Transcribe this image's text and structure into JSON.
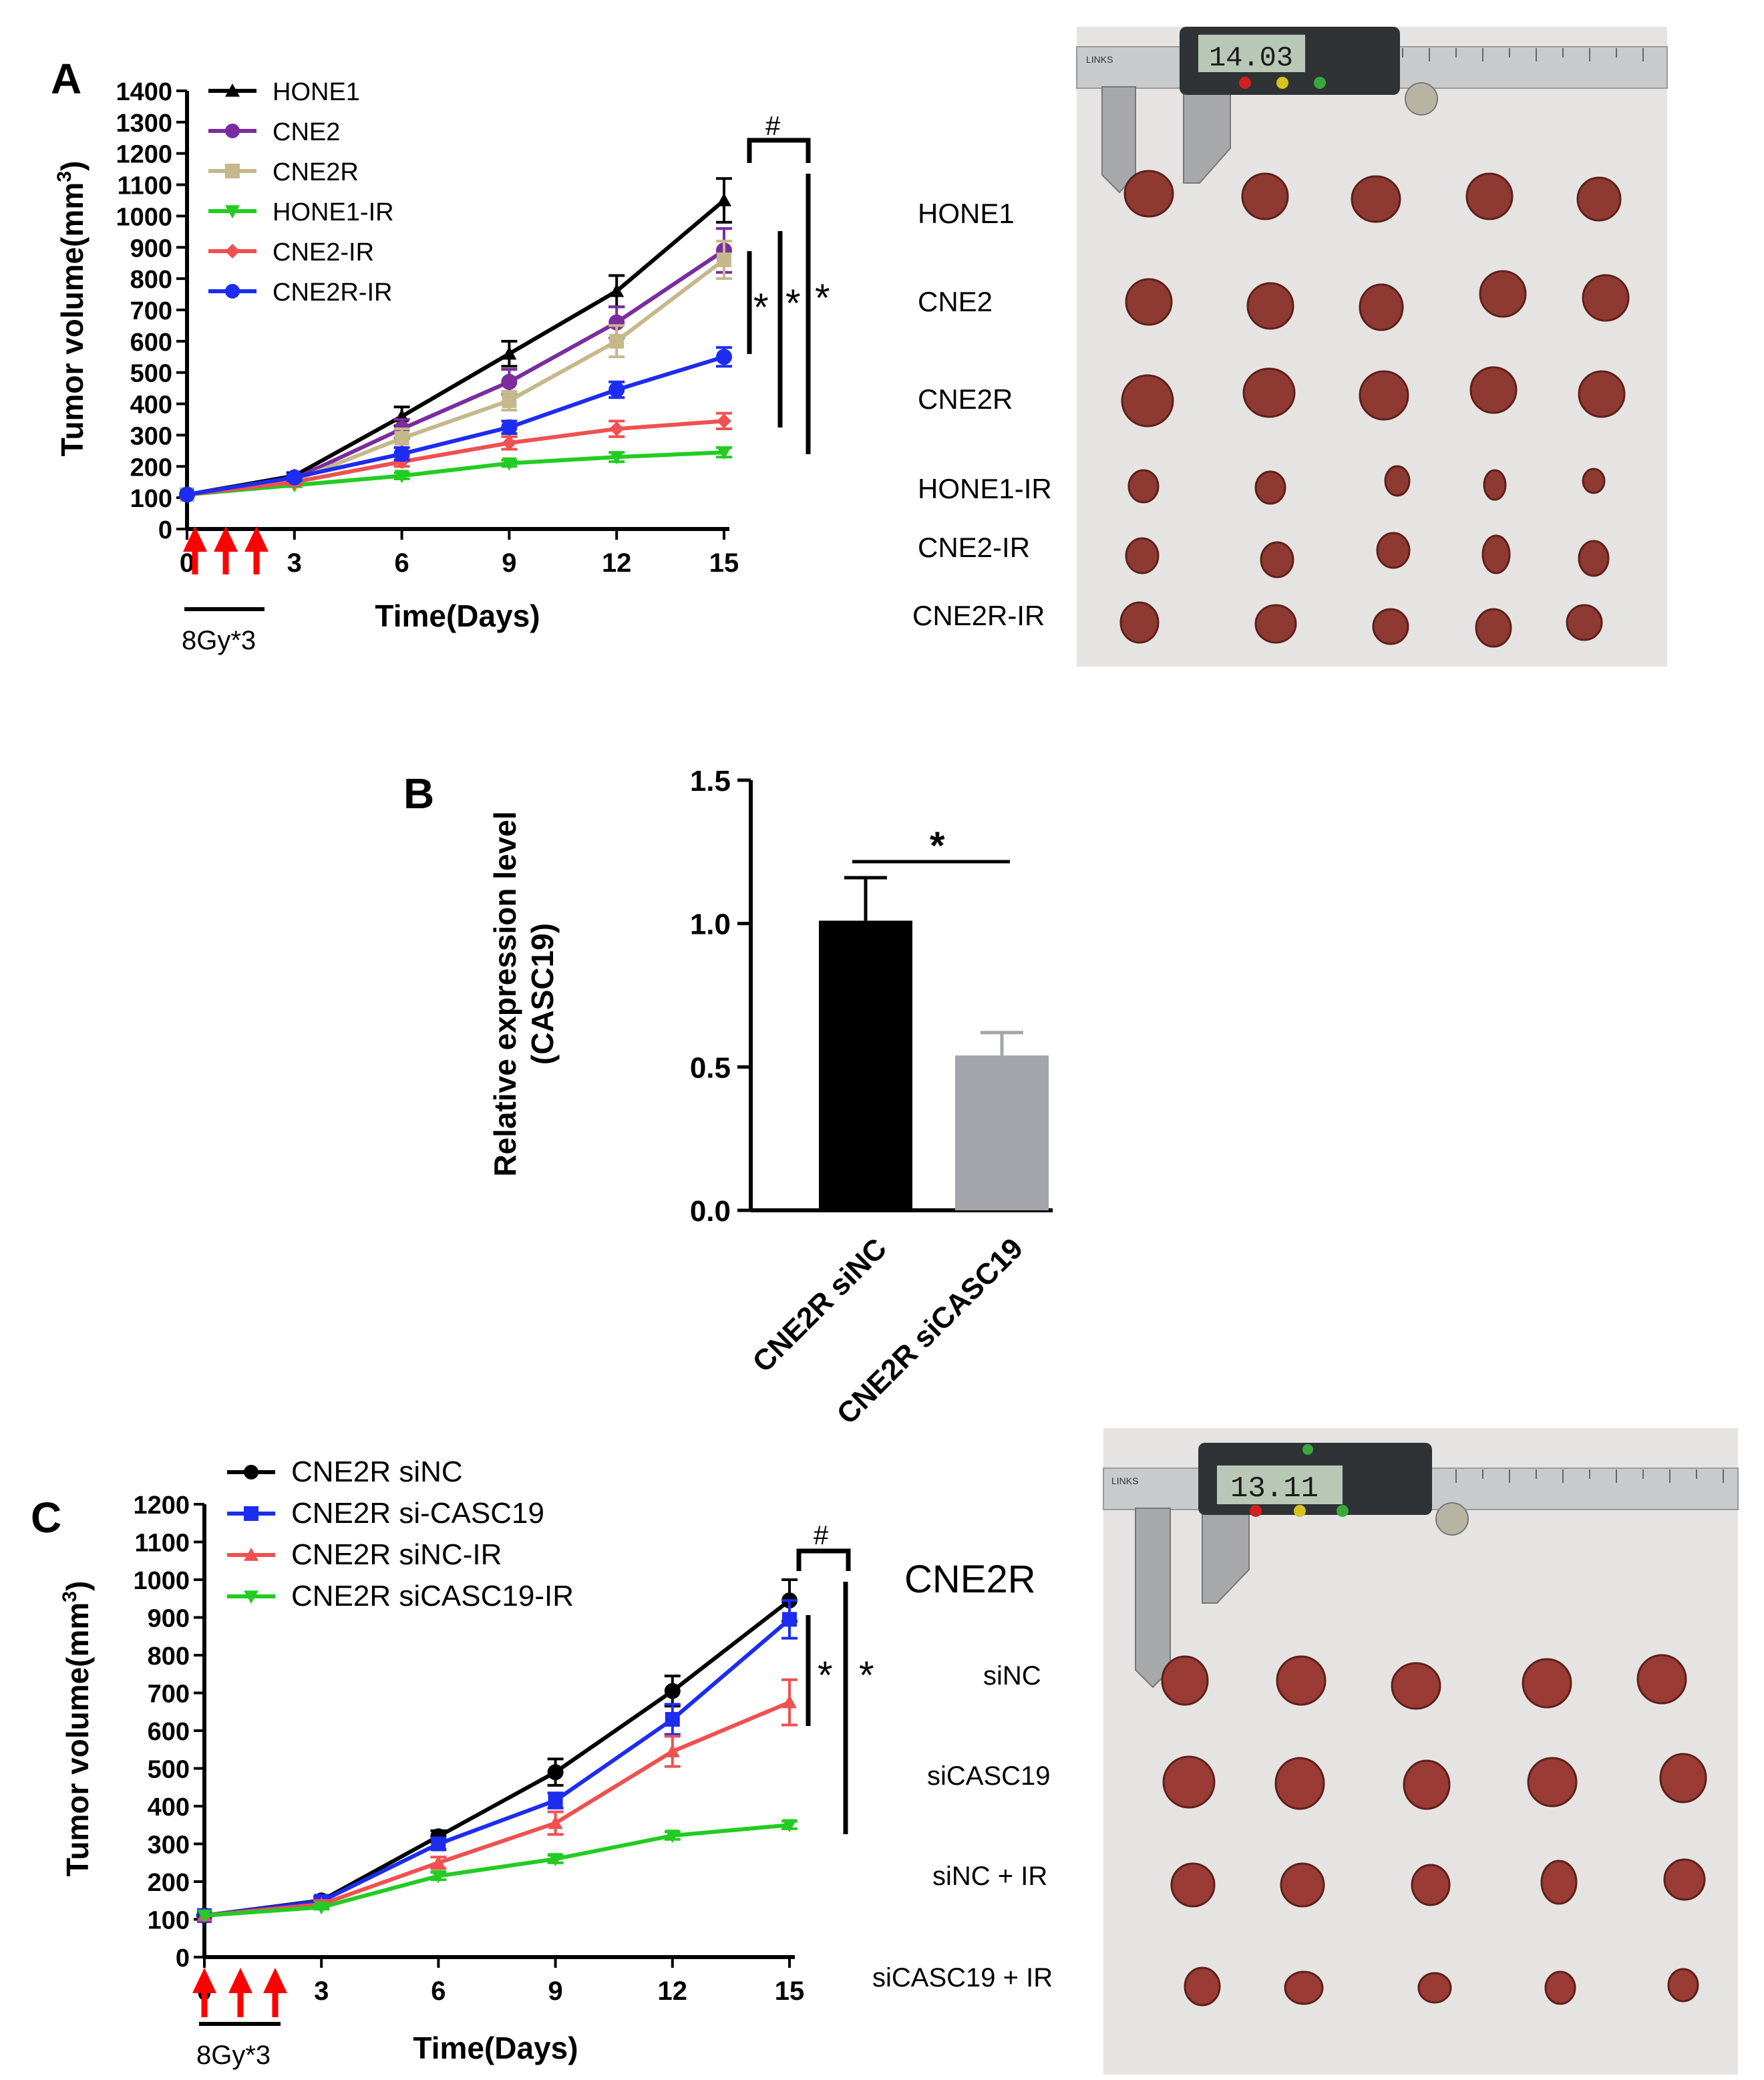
{
  "colors": {
    "black": "#000000",
    "purple": "#7b2c9e",
    "khaki": "#c5b88a",
    "green": "#22cc22",
    "red": "#f05050",
    "blue": "#1c2cf0",
    "gray": "#a3a5aa",
    "photo_bg": "#e6e4e2",
    "tumor": "#8e3a32"
  },
  "panel_a": {
    "label": "A",
    "treatment_label": "8Gy*3",
    "significance": {
      "hash": "#",
      "stars": [
        "*",
        "*",
        "*"
      ]
    },
    "photo": {
      "caliper_reading": "14.03",
      "caliper_brand": "LINKS",
      "row_labels": [
        "HONE1",
        "CNE2",
        "CNE2R",
        "HONE1-IR",
        "CNE2-IR",
        "CNE2R-IR"
      ]
    }
  },
  "panel_b": {
    "label": "B",
    "significance": "*"
  },
  "panel_c": {
    "label": "C",
    "treatment_label": "8Gy*3",
    "significance": {
      "hash": "#",
      "stars": [
        "*",
        "*"
      ]
    },
    "photo": {
      "caliper_reading": "13.11",
      "caliper_brand": "LINKS",
      "title": "CNE2R",
      "row_labels": [
        "siNC",
        "siCASC19",
        "siNC + IR",
        "siCASC19 + IR"
      ]
    }
  },
  "chart_data": [
    {
      "id": "A",
      "type": "line",
      "xlabel": "Time(Days)",
      "ylabel": "Tumor volume(mm",
      "ylabel_sup": "3",
      "ylabel_close": ")",
      "x": [
        0,
        3,
        6,
        9,
        12,
        15
      ],
      "xticks": [
        "0",
        "3",
        "6",
        "9",
        "12",
        "15"
      ],
      "ylim": [
        0,
        1400
      ],
      "yticks": [
        "0",
        "100",
        "200",
        "300",
        "400",
        "500",
        "600",
        "700",
        "800",
        "900",
        "1000",
        "1100",
        "1200",
        "1300",
        "1400"
      ],
      "series": [
        {
          "name": "HONE1",
          "color": "#000000",
          "marker": "triangle-up",
          "values": [
            110,
            170,
            360,
            560,
            760,
            1050
          ],
          "errors": [
            0,
            10,
            30,
            40,
            50,
            70
          ]
        },
        {
          "name": "CNE2",
          "color": "#7b2c9e",
          "marker": "circle",
          "values": [
            110,
            160,
            320,
            470,
            660,
            890
          ],
          "errors": [
            0,
            10,
            30,
            40,
            50,
            70
          ]
        },
        {
          "name": "CNE2R",
          "color": "#c5b88a",
          "marker": "square",
          "values": [
            110,
            155,
            290,
            410,
            600,
            860
          ],
          "errors": [
            0,
            10,
            30,
            30,
            50,
            60
          ]
        },
        {
          "name": "HONE1-IR",
          "color": "#22cc22",
          "marker": "triangle-down",
          "values": [
            110,
            140,
            170,
            210,
            230,
            245
          ],
          "errors": [
            0,
            5,
            10,
            10,
            15,
            15
          ]
        },
        {
          "name": "CNE2-IR",
          "color": "#f05050",
          "marker": "diamond",
          "values": [
            110,
            150,
            215,
            275,
            320,
            345
          ],
          "errors": [
            0,
            10,
            15,
            20,
            25,
            25
          ]
        },
        {
          "name": "CNE2R-IR",
          "color": "#1c2cf0",
          "marker": "circle",
          "values": [
            110,
            165,
            240,
            325,
            445,
            550
          ],
          "errors": [
            0,
            10,
            20,
            20,
            25,
            30
          ]
        }
      ]
    },
    {
      "id": "B",
      "type": "bar",
      "ylabel": "Relative expression level",
      "ylabel2": "(CASC19)",
      "categories": [
        "CNE2R siNC",
        "CNE2R siCASC19"
      ],
      "values": [
        1.01,
        0.54
      ],
      "errors": [
        0.15,
        0.08
      ],
      "colors": [
        "#000000",
        "#a3a5aa"
      ],
      "ylim": [
        0,
        1.5
      ],
      "yticks": [
        "0.0",
        "0.5",
        "1.0",
        "1.5"
      ]
    },
    {
      "id": "C",
      "type": "line",
      "xlabel": "Time(Days)",
      "ylabel": "Tumor volume(mm",
      "ylabel_sup": "3",
      "ylabel_close": ")",
      "x": [
        0,
        3,
        6,
        9,
        12,
        15
      ],
      "xticks": [
        "0",
        "3",
        "6",
        "9",
        "12",
        "15"
      ],
      "ylim": [
        0,
        1200
      ],
      "yticks": [
        "0",
        "100",
        "200",
        "300",
        "400",
        "500",
        "600",
        "700",
        "800",
        "900",
        "1000",
        "1100",
        "1200"
      ],
      "series": [
        {
          "name": "CNE2R siNC",
          "color": "#000000",
          "marker": "circle",
          "values": [
            110,
            150,
            320,
            490,
            705,
            945
          ],
          "errors": [
            0,
            10,
            15,
            35,
            40,
            55
          ]
        },
        {
          "name": "CNE2R si-CASC19",
          "color": "#1c2cf0",
          "marker": "square",
          "values": [
            110,
            148,
            300,
            415,
            630,
            895
          ],
          "errors": [
            0,
            10,
            15,
            20,
            40,
            50
          ]
        },
        {
          "name": "CNE2R siNC-IR",
          "color": "#f05050",
          "marker": "triangle-up",
          "values": [
            110,
            140,
            250,
            355,
            545,
            675
          ],
          "errors": [
            0,
            10,
            15,
            30,
            40,
            60
          ]
        },
        {
          "name": "CNE2R siCASC19-IR",
          "color": "#22cc22",
          "marker": "triangle-down",
          "values": [
            110,
            132,
            215,
            260,
            322,
            350
          ],
          "errors": [
            0,
            5,
            10,
            10,
            10,
            10
          ]
        }
      ]
    }
  ]
}
